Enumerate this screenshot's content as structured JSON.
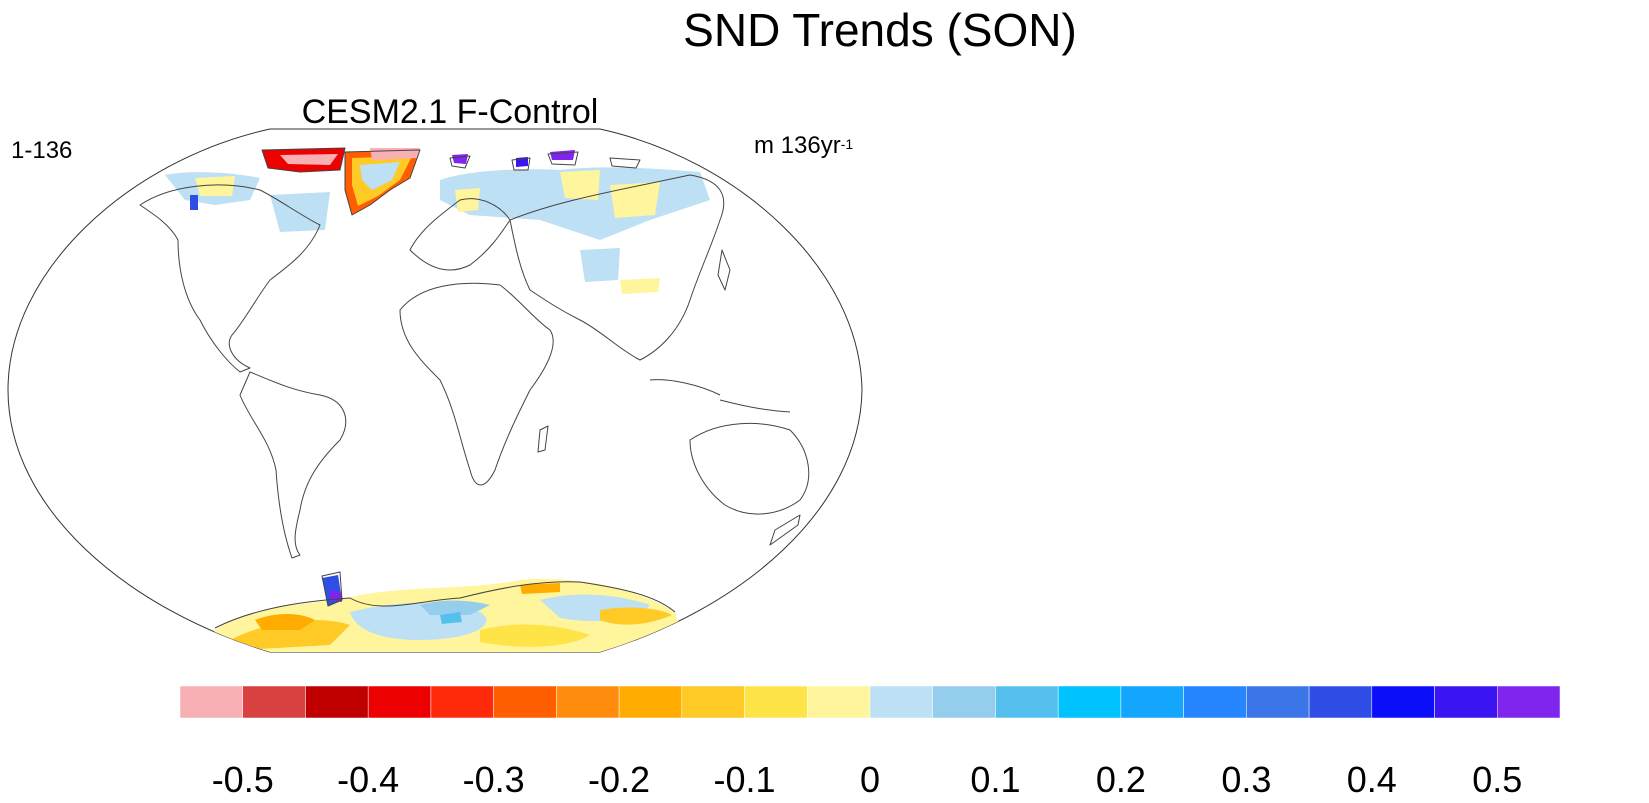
{
  "title": "SND Trends (SON)",
  "panel": {
    "title": "CESM2.1 F-Control",
    "left_label": "1-136",
    "units_prefix": "m 136yr",
    "units_exp": "-1"
  },
  "colorbar": {
    "colors": [
      "#f9b0b4",
      "#d94040",
      "#c00000",
      "#ec0000",
      "#ff2a0a",
      "#ff5e00",
      "#ff8c0c",
      "#ffab00",
      "#ffc926",
      "#ffe448",
      "#fff59c",
      "#bde0f4",
      "#95cdec",
      "#55c0ee",
      "#00c2ff",
      "#14a5ff",
      "#2586ff",
      "#3a76e8",
      "#2e4ee6",
      "#0b0ef8",
      "#3c14f2",
      "#7f25ee"
    ],
    "tick_labels": [
      "-0.5",
      "-0.4",
      "-0.3",
      "-0.2",
      "-0.1",
      "0",
      "0.1",
      "0.2",
      "0.3",
      "0.4",
      "0.5"
    ]
  }
}
